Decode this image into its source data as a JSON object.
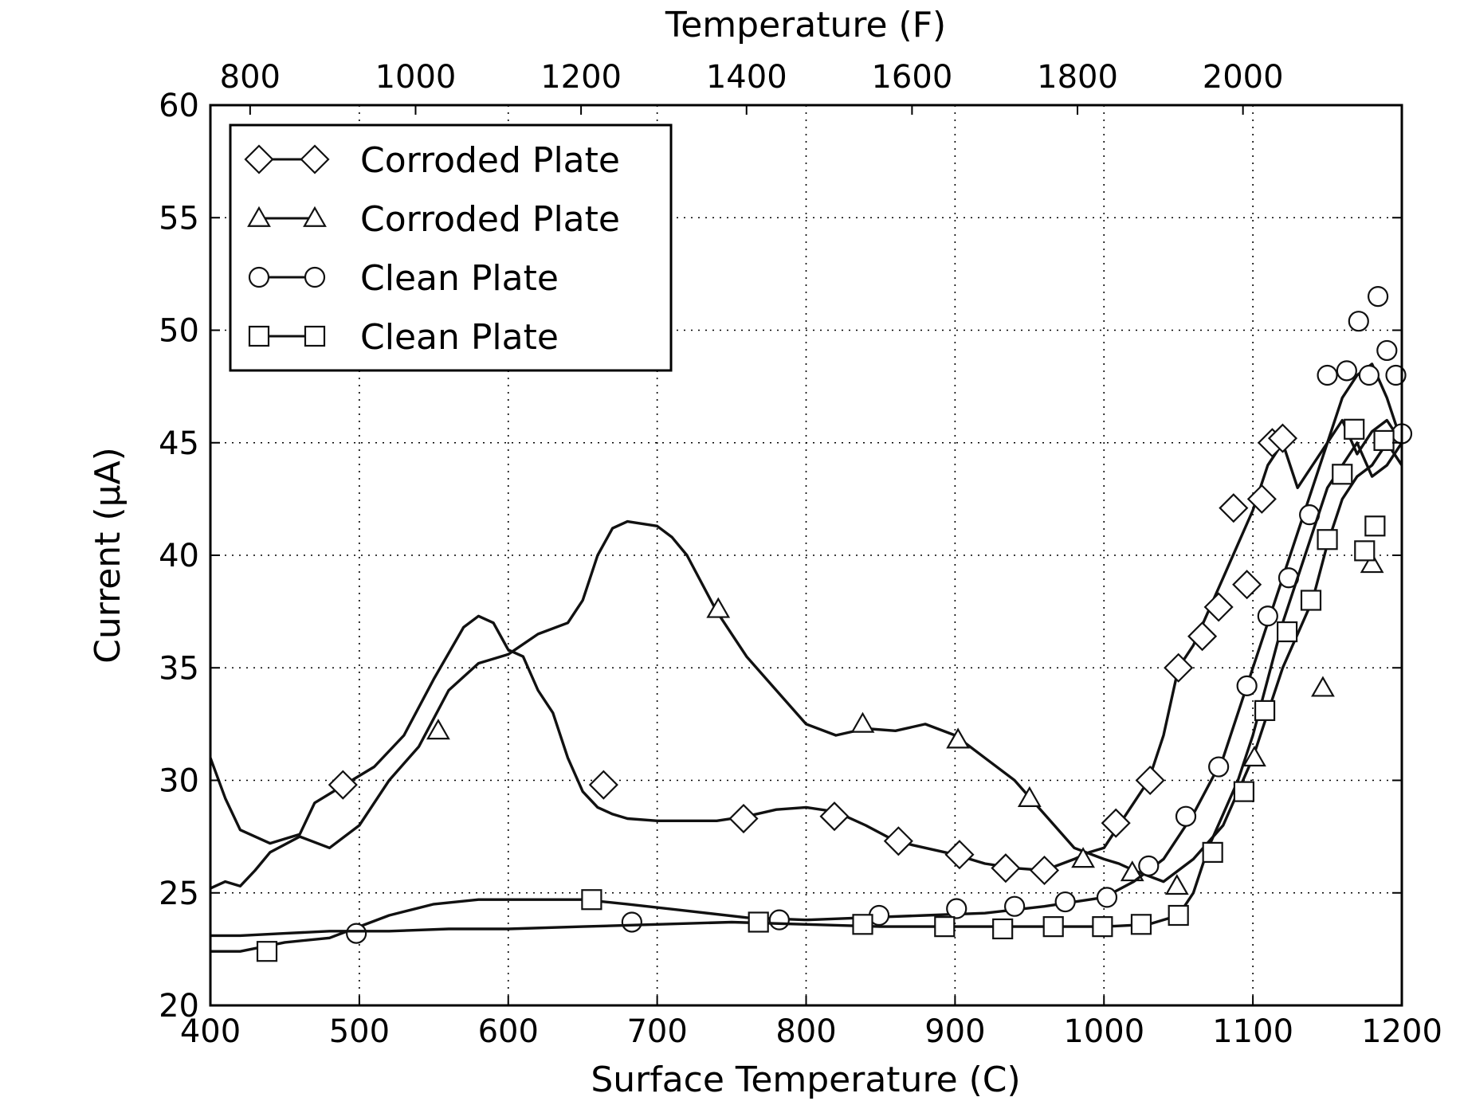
{
  "chart_data": {
    "type": "line",
    "xlabel": "Surface Temperature (C)",
    "ylabel": "Current (μA)",
    "x2label": "Temperature (F)",
    "xlim": [
      400,
      1200
    ],
    "ylim": [
      20,
      60
    ],
    "x_ticks": [
      "400",
      "500",
      "600",
      "700",
      "800",
      "900",
      "1000",
      "1100",
      "1200"
    ],
    "y_ticks": [
      "20",
      "25",
      "30",
      "35",
      "40",
      "45",
      "50",
      "55",
      "60"
    ],
    "x2_ticks": [
      "800",
      "1000",
      "1200",
      "1400",
      "1600",
      "1800",
      "2000"
    ],
    "x2_tick_values_F": [
      800,
      1000,
      1200,
      1400,
      1600,
      1800,
      2000
    ],
    "grid": true,
    "legend_position": "top-left",
    "series": [
      {
        "name": "Corroded Plate",
        "marker": "diamond",
        "x": [
          400,
          410,
          420,
          440,
          460,
          470,
          490,
          510,
          530,
          550,
          570,
          580,
          590,
          600,
          610,
          620,
          630,
          640,
          650,
          660,
          670,
          680,
          700,
          720,
          740,
          760,
          780,
          800,
          820,
          840,
          860,
          880,
          900,
          920,
          940,
          960,
          980,
          990,
          1000,
          1010,
          1020,
          1030,
          1040,
          1050,
          1060,
          1070,
          1080,
          1090,
          1100,
          1110,
          1120,
          1130,
          1140,
          1150,
          1160,
          1170,
          1180,
          1190,
          1200
        ],
        "y": [
          31.0,
          29.2,
          27.8,
          27.2,
          27.6,
          29.0,
          29.8,
          30.6,
          32.0,
          34.5,
          36.8,
          37.3,
          37.0,
          35.8,
          35.5,
          34.0,
          33.0,
          31.0,
          29.5,
          28.8,
          28.5,
          28.3,
          28.2,
          28.2,
          28.2,
          28.4,
          28.7,
          28.8,
          28.6,
          28.0,
          27.3,
          27.0,
          26.7,
          26.3,
          26.1,
          26.0,
          26.5,
          26.8,
          27.0,
          28.0,
          29.0,
          30.0,
          32.0,
          35.0,
          36.0,
          37.5,
          39.0,
          40.5,
          42.0,
          44.0,
          45.0,
          43.0,
          44.0,
          45.0,
          46.0,
          44.5,
          45.5,
          46.0,
          45.0
        ],
        "marker_x": [
          489,
          664,
          758,
          819,
          862,
          903,
          934,
          960,
          1008,
          1031,
          1050,
          1066,
          1077,
          1087,
          1096,
          1106,
          1113,
          1120
        ],
        "marker_y": [
          29.8,
          29.8,
          28.3,
          28.4,
          27.3,
          26.7,
          26.1,
          26.0,
          28.1,
          30.0,
          35.0,
          36.4,
          37.7,
          42.1,
          38.7,
          42.5,
          45.0,
          45.2
        ]
      },
      {
        "name": "Corroded Plate",
        "marker": "triangle",
        "x": [
          400,
          410,
          420,
          430,
          440,
          460,
          480,
          500,
          520,
          540,
          560,
          580,
          600,
          620,
          640,
          650,
          660,
          670,
          680,
          700,
          710,
          720,
          740,
          760,
          780,
          800,
          820,
          840,
          860,
          880,
          900,
          920,
          940,
          960,
          980,
          1000,
          1010,
          1020,
          1040,
          1060,
          1080,
          1100,
          1120,
          1140,
          1150,
          1160,
          1170,
          1180,
          1190,
          1200
        ],
        "y": [
          25.2,
          25.5,
          25.3,
          26.0,
          26.8,
          27.5,
          27.0,
          28.0,
          30.0,
          31.5,
          34.0,
          35.2,
          35.6,
          36.5,
          37.0,
          38.0,
          40.0,
          41.2,
          41.5,
          41.3,
          40.8,
          40.0,
          37.5,
          35.5,
          34.0,
          32.5,
          32.0,
          32.3,
          32.2,
          32.5,
          32.0,
          31.0,
          30.0,
          28.5,
          27.0,
          26.5,
          26.3,
          26.0,
          25.5,
          26.5,
          28.0,
          31.0,
          35.0,
          38.0,
          40.5,
          42.5,
          43.5,
          44.0,
          45.0,
          44.0
        ],
        "marker_x": [
          553,
          741,
          838,
          902,
          950,
          986,
          1019,
          1049,
          1101,
          1147,
          1180
        ],
        "marker_y": [
          32.2,
          37.6,
          32.5,
          31.8,
          29.2,
          26.5,
          25.9,
          25.3,
          31.0,
          34.1,
          39.6
        ]
      },
      {
        "name": "Clean Plate",
        "marker": "circle",
        "x": [
          400,
          420,
          450,
          480,
          500,
          520,
          550,
          580,
          620,
          650,
          680,
          720,
          760,
          800,
          840,
          880,
          920,
          960,
          1000,
          1020,
          1040,
          1060,
          1080,
          1100,
          1120,
          1140,
          1150,
          1160,
          1170,
          1180,
          1190,
          1200
        ],
        "y": [
          22.4,
          22.4,
          22.8,
          23.0,
          23.5,
          24.0,
          24.5,
          24.7,
          24.7,
          24.7,
          24.5,
          24.2,
          23.9,
          23.8,
          23.9,
          24.0,
          24.1,
          24.4,
          24.8,
          25.5,
          26.5,
          28.5,
          31.0,
          35.0,
          39.0,
          43.0,
          45.0,
          47.0,
          48.0,
          48.5,
          47.0,
          45.0
        ],
        "marker_x": [
          498,
          683,
          782,
          849,
          901,
          940,
          974,
          1002,
          1030,
          1055,
          1077,
          1096,
          1110,
          1124,
          1138,
          1150,
          1163,
          1171,
          1178,
          1184,
          1190,
          1196,
          1200
        ],
        "marker_y": [
          23.2,
          23.7,
          23.8,
          24.0,
          24.3,
          24.4,
          24.6,
          24.8,
          26.2,
          28.4,
          30.6,
          34.2,
          37.3,
          39.0,
          41.8,
          48.0,
          48.2,
          50.4,
          48.0,
          51.5,
          49.1,
          48.0,
          45.4
        ]
      },
      {
        "name": "Clean Plate",
        "marker": "square",
        "x": [
          400,
          420,
          450,
          480,
          520,
          560,
          600,
          650,
          700,
          750,
          800,
          850,
          900,
          950,
          1000,
          1030,
          1050,
          1060,
          1070,
          1080,
          1090,
          1100,
          1110,
          1120,
          1130,
          1140,
          1150,
          1160,
          1170,
          1180,
          1190,
          1200
        ],
        "y": [
          23.1,
          23.1,
          23.2,
          23.3,
          23.3,
          23.4,
          23.4,
          23.5,
          23.6,
          23.7,
          23.6,
          23.5,
          23.5,
          23.5,
          23.5,
          23.6,
          24.0,
          25.0,
          27.0,
          28.5,
          30.0,
          32.0,
          34.5,
          37.0,
          39.0,
          41.0,
          43.0,
          44.0,
          45.0,
          43.5,
          44.0,
          45.0
        ],
        "marker_x": [
          438,
          656,
          768,
          838,
          893,
          932,
          966,
          999,
          1025,
          1050,
          1073,
          1094,
          1108,
          1123,
          1139,
          1150,
          1160,
          1168,
          1175,
          1182,
          1188
        ],
        "marker_y": [
          22.4,
          24.7,
          23.7,
          23.6,
          23.5,
          23.4,
          23.5,
          23.5,
          23.6,
          24.0,
          26.8,
          29.5,
          33.1,
          36.6,
          38.0,
          40.7,
          43.6,
          45.6,
          40.2,
          41.3,
          45.1
        ]
      }
    ]
  }
}
